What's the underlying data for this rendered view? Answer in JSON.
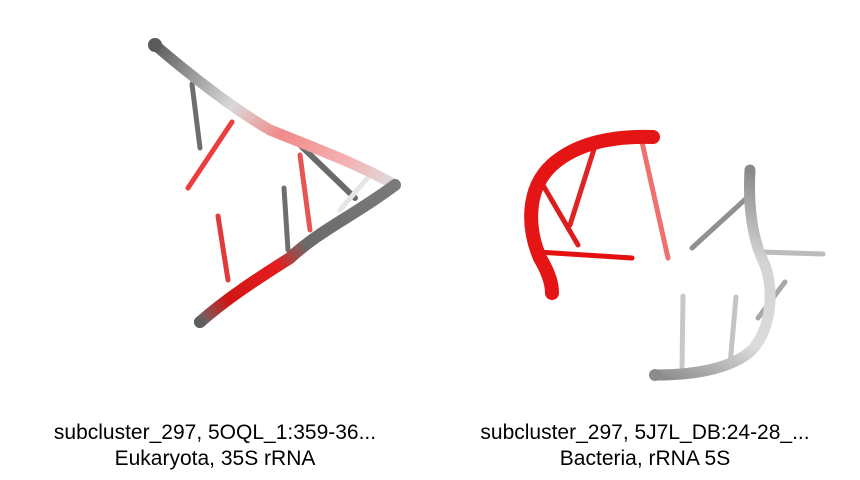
{
  "panels": [
    {
      "caption_line1": "subcluster_297, 5OQL_1:359-36...",
      "caption_line2": "Eukaryota, 35S rRNA"
    },
    {
      "caption_line1": "subcluster_297, 5J7L_DB:24-28_...",
      "caption_line2": "Bacteria, rRNA 5S"
    }
  ],
  "colors": {
    "backbone_gray": "#6e6e6e",
    "highlight_red": "#e8201f",
    "light_gray": "#cfcfcf"
  }
}
